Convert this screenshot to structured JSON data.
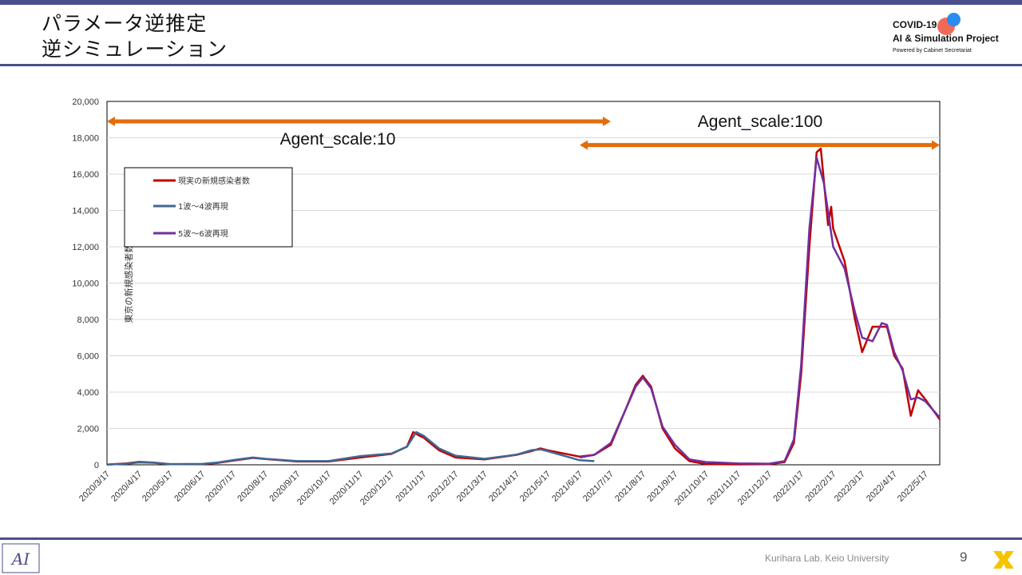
{
  "header": {
    "title_line1": "パラメータ逆推定",
    "title_line2": "逆シミュレーション",
    "logo_line1": "COVID-19",
    "logo_line2": "AI & Simulation Project",
    "logo_line3": "Powered by Cabinet Secretariat"
  },
  "footer": {
    "lab": "Kurihara Lab. Keio University",
    "page_number": "9"
  },
  "colors": {
    "accent_bar": "#4a4f8c",
    "arrow": "#e36c0a",
    "real": "#c00000",
    "wave1to4": "#3e6894",
    "wave5to6": "#7030a0"
  },
  "annotations": {
    "agent10": "Agent_scale:10",
    "agent100": "Agent_scale:100"
  },
  "chart_data": {
    "type": "line",
    "title": "",
    "xlabel": "",
    "ylabel": "東京の新規感染者数",
    "ylim": [
      0,
      20000
    ],
    "yticks": [
      "0",
      "2,000",
      "4,000",
      "6,000",
      "8,000",
      "10,000",
      "12,000",
      "14,000",
      "16,000",
      "18,000",
      "20,000"
    ],
    "x_start": "2020/3/17",
    "x_end": "2022/5/31",
    "xticks": [
      "2020/3/17",
      "2020/4/17",
      "2020/5/17",
      "2020/6/17",
      "2020/7/17",
      "2020/8/17",
      "2020/9/17",
      "2020/10/17",
      "2020/11/17",
      "2020/12/17",
      "2021/1/17",
      "2021/2/17",
      "2021/3/17",
      "2021/4/17",
      "2021/5/17",
      "2021/6/17",
      "2021/7/17",
      "2021/8/17",
      "2021/9/17",
      "2021/10/17",
      "2021/11/17",
      "2021/12/17",
      "2022/1/17",
      "2022/2/17",
      "2022/3/17",
      "2022/4/17",
      "2022/5/17"
    ],
    "grid": true,
    "legend_position": "top-left",
    "arrows": [
      {
        "label": "Agent_scale:10",
        "from": "2020/3/17",
        "to": "2021/7/17",
        "y": 18900
      },
      {
        "label": "Agent_scale:100",
        "from": "2021/6/17",
        "to": "2022/5/31",
        "y": 17600
      }
    ],
    "series": [
      {
        "name": "現実の新規感染者数",
        "color": "#c00000",
        "points": [
          [
            "2020/3/17",
            10
          ],
          [
            "2020/4/5",
            80
          ],
          [
            "2020/4/17",
            160
          ],
          [
            "2020/5/1",
            120
          ],
          [
            "2020/5/17",
            30
          ],
          [
            "2020/6/17",
            40
          ],
          [
            "2020/7/1",
            100
          ],
          [
            "2020/7/17",
            230
          ],
          [
            "2020/8/5",
            380
          ],
          [
            "2020/8/17",
            320
          ],
          [
            "2020/9/17",
            180
          ],
          [
            "2020/10/17",
            180
          ],
          [
            "2020/11/17",
            400
          ],
          [
            "2020/12/17",
            600
          ],
          [
            "2021/1/1",
            1000
          ],
          [
            "2021/1/7",
            1800
          ],
          [
            "2021/1/13",
            1600
          ],
          [
            "2021/1/17",
            1500
          ],
          [
            "2021/2/1",
            800
          ],
          [
            "2021/2/17",
            400
          ],
          [
            "2021/3/17",
            300
          ],
          [
            "2021/4/17",
            550
          ],
          [
            "2021/5/1",
            750
          ],
          [
            "2021/5/10",
            900
          ],
          [
            "2021/5/17",
            800
          ],
          [
            "2021/6/17",
            450
          ],
          [
            "2021/7/1",
            550
          ],
          [
            "2021/7/17",
            1100
          ],
          [
            "2021/7/31",
            3000
          ],
          [
            "2021/8/10",
            4400
          ],
          [
            "2021/8/17",
            4900
          ],
          [
            "2021/8/25",
            4300
          ],
          [
            "2021/9/5",
            2000
          ],
          [
            "2021/9/17",
            900
          ],
          [
            "2021/10/1",
            200
          ],
          [
            "2021/10/17",
            40
          ],
          [
            "2021/11/17",
            20
          ],
          [
            "2021/12/17",
            30
          ],
          [
            "2022/1/1",
            150
          ],
          [
            "2022/1/10",
            1200
          ],
          [
            "2022/1/17",
            5000
          ],
          [
            "2022/1/25",
            12000
          ],
          [
            "2022/2/1",
            17200
          ],
          [
            "2022/2/5",
            17400
          ],
          [
            "2022/2/12",
            13200
          ],
          [
            "2022/2/15",
            14200
          ],
          [
            "2022/2/17",
            13000
          ],
          [
            "2022/2/28",
            11200
          ],
          [
            "2022/3/10",
            8000
          ],
          [
            "2022/3/17",
            6200
          ],
          [
            "2022/3/27",
            7600
          ],
          [
            "2022/4/10",
            7600
          ],
          [
            "2022/4/17",
            6000
          ],
          [
            "2022/4/25",
            5300
          ],
          [
            "2022/5/3",
            2700
          ],
          [
            "2022/5/10",
            4100
          ],
          [
            "2022/5/17",
            3600
          ],
          [
            "2022/5/31",
            2500
          ]
        ]
      },
      {
        "name": "1波〜4波再現",
        "color": "#3e6894",
        "points": [
          [
            "2020/3/17",
            10
          ],
          [
            "2020/4/5",
            60
          ],
          [
            "2020/4/17",
            130
          ],
          [
            "2020/5/1",
            110
          ],
          [
            "2020/5/17",
            40
          ],
          [
            "2020/6/17",
            50
          ],
          [
            "2020/7/1",
            120
          ],
          [
            "2020/7/17",
            260
          ],
          [
            "2020/8/5",
            400
          ],
          [
            "2020/8/17",
            330
          ],
          [
            "2020/9/17",
            200
          ],
          [
            "2020/10/17",
            200
          ],
          [
            "2020/11/17",
            480
          ],
          [
            "2020/12/17",
            620
          ],
          [
            "2021/1/1",
            1000
          ],
          [
            "2021/1/10",
            1800
          ],
          [
            "2021/1/17",
            1600
          ],
          [
            "2021/2/1",
            900
          ],
          [
            "2021/2/17",
            500
          ],
          [
            "2021/3/17",
            330
          ],
          [
            "2021/4/17",
            560
          ],
          [
            "2021/5/1",
            800
          ],
          [
            "2021/5/10",
            850
          ],
          [
            "2021/5/17",
            750
          ],
          [
            "2021/6/17",
            250
          ],
          [
            "2021/7/1",
            200
          ]
        ]
      },
      {
        "name": "5波〜6波再現",
        "color": "#7030a0",
        "points": [
          [
            "2021/6/17",
            400
          ],
          [
            "2021/7/1",
            550
          ],
          [
            "2021/7/17",
            1200
          ],
          [
            "2021/7/31",
            3000
          ],
          [
            "2021/8/10",
            4300
          ],
          [
            "2021/8/17",
            4800
          ],
          [
            "2021/8/25",
            4200
          ],
          [
            "2021/9/5",
            2100
          ],
          [
            "2021/9/17",
            1100
          ],
          [
            "2021/10/1",
            300
          ],
          [
            "2021/10/17",
            150
          ],
          [
            "2021/11/17",
            80
          ],
          [
            "2021/12/17",
            60
          ],
          [
            "2022/1/1",
            200
          ],
          [
            "2022/1/10",
            1400
          ],
          [
            "2022/1/17",
            5500
          ],
          [
            "2022/1/25",
            13000
          ],
          [
            "2022/2/1",
            16900
          ],
          [
            "2022/2/8",
            15500
          ],
          [
            "2022/2/17",
            12000
          ],
          [
            "2022/2/28",
            10800
          ],
          [
            "2022/3/10",
            8400
          ],
          [
            "2022/3/17",
            7000
          ],
          [
            "2022/3/27",
            6800
          ],
          [
            "2022/4/5",
            7800
          ],
          [
            "2022/4/10",
            7700
          ],
          [
            "2022/4/17",
            6200
          ],
          [
            "2022/4/25",
            5200
          ],
          [
            "2022/5/3",
            3600
          ],
          [
            "2022/5/10",
            3700
          ],
          [
            "2022/5/17",
            3500
          ],
          [
            "2022/5/31",
            2600
          ]
        ]
      }
    ]
  }
}
